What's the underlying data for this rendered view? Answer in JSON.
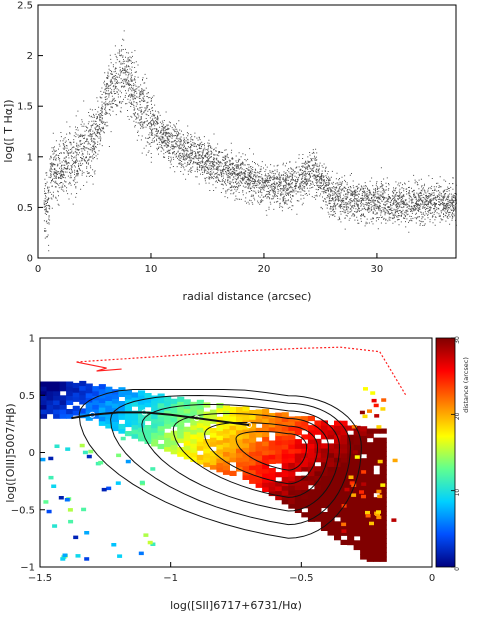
{
  "chart_data": [
    {
      "type": "scatter",
      "xlabel": "radial distance (arcsec)",
      "ylabel": "log([ T Hα])",
      "xlim": [
        0,
        37
      ],
      "ylim": [
        0,
        2.5
      ],
      "x_ticks": [
        0,
        10,
        20,
        30
      ],
      "y_ticks": [
        0,
        0.5,
        1,
        1.5,
        2,
        2.5
      ],
      "x_tick_labels": [
        "0",
        "10",
        "20",
        "30"
      ],
      "y_tick_labels": [
        "0",
        "0.5",
        "1",
        "1.5",
        "2",
        "2.5"
      ],
      "grid": false,
      "point_color": "#111111",
      "trend": {
        "x": [
          1,
          3,
          5,
          6.5,
          7.5,
          9,
          11,
          13,
          16,
          19,
          22,
          24.5,
          26,
          30,
          34,
          37
        ],
        "y": [
          0.85,
          0.95,
          1.2,
          1.7,
          1.85,
          1.5,
          1.2,
          1.05,
          0.9,
          0.75,
          0.7,
          0.85,
          0.6,
          0.55,
          0.55,
          0.55
        ]
      }
    },
    {
      "type": "heatmap",
      "xlabel": "log([SII]6717+6731/Hα)",
      "ylabel": "log([OIII]5007/Hβ)",
      "xlim": [
        -1.5,
        0
      ],
      "ylim": [
        -1,
        1
      ],
      "x_ticks": [
        -1.5,
        -1,
        -0.5,
        0
      ],
      "y_ticks": [
        -1,
        -0.5,
        0,
        0.5,
        1
      ],
      "x_tick_labels": [
        "−1.5",
        "−1",
        "−0.5",
        "0"
      ],
      "y_tick_labels": [
        "−1",
        "−0.5",
        "0",
        "0.5",
        "1"
      ],
      "colorbar": {
        "label": "distance (arcsec)",
        "range": [
          0,
          30
        ],
        "ticks": [
          0,
          10,
          20,
          30
        ],
        "tick_labels": [
          "0",
          "10",
          "20",
          "30"
        ],
        "colors": [
          "#00007f",
          "#0050ff",
          "#00d0ff",
          "#60ff90",
          "#ffff00",
          "#ff8000",
          "#ff0000",
          "#800000"
        ]
      },
      "demarcation_line": {
        "color": "#ff2020",
        "x": [
          -1.36,
          -1.3,
          -1.1,
          -0.9,
          -0.7,
          -0.5,
          -0.35,
          -0.2,
          -0.1
        ],
        "y": [
          0.79,
          0.8,
          0.83,
          0.86,
          0.89,
          0.91,
          0.92,
          0.88,
          0.5
        ]
      },
      "model_grid_line": {
        "color": "#111111",
        "x": [
          -1.38,
          -1.3,
          -1.2,
          -1.1,
          -1.0,
          -0.9,
          -0.8,
          -0.7
        ],
        "y": [
          0.3,
          0.33,
          0.35,
          0.35,
          0.33,
          0.3,
          0.27,
          0.24
        ]
      },
      "contour_levels": 6,
      "contour_center": [
        -0.55,
        0.05
      ]
    }
  ]
}
